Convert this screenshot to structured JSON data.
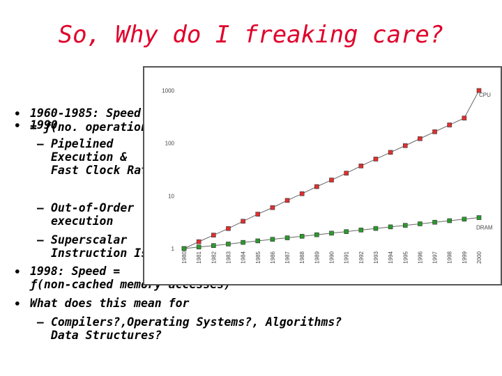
{
  "slide": {
    "title": "So, Why do I freaking care?",
    "bullets": [
      {
        "level": 1,
        "marker": "•",
        "lines": [
          "1960-1985: Speed",
          "= ƒ(no. operations)"
        ]
      },
      {
        "level": 1,
        "marker": "•",
        "lines": [
          "1990"
        ]
      },
      {
        "level": 2,
        "marker": "–",
        "lines": [
          "Pipelined",
          "Execution &",
          "Fast Clock Rate"
        ]
      },
      {
        "level": 2,
        "marker": "–",
        "lines": [
          "Out-of-Order",
          "execution"
        ]
      },
      {
        "level": 2,
        "marker": "–",
        "lines": [
          "Superscalar",
          "Instruction Issue"
        ]
      },
      {
        "level": 1,
        "marker": "•",
        "lines": [
          "1998: Speed =",
          "ƒ(non-cached memory accesses)"
        ]
      },
      {
        "level": 1,
        "marker": "•",
        "lines": [
          "What does this mean for"
        ]
      },
      {
        "level": 2,
        "marker": "–",
        "lines": [
          "Compilers?,Operating Systems?, Algorithms?",
          "Data Structures?"
        ]
      }
    ]
  },
  "chart_data": {
    "type": "line",
    "title": "",
    "xlabel": "",
    "ylabel": "",
    "yscale": "log",
    "ylim": [
      1,
      1000
    ],
    "y_ticks": [
      "1",
      "10",
      "100",
      "1000"
    ],
    "x": [
      "1980",
      "1981",
      "1982",
      "1983",
      "1984",
      "1985",
      "1986",
      "1987",
      "1988",
      "1989",
      "1990",
      "1991",
      "1992",
      "1993",
      "1994",
      "1995",
      "1996",
      "1997",
      "1998",
      "1999",
      "2000"
    ],
    "series": [
      {
        "name": "CPU",
        "color": "#e03030",
        "marker": "square",
        "values": [
          1,
          1.35,
          1.8,
          2.4,
          3.3,
          4.5,
          6.0,
          8.2,
          11,
          15,
          20,
          27,
          37,
          50,
          67,
          90,
          122,
          165,
          222,
          300,
          1000
        ]
      },
      {
        "name": "DRAM",
        "color": "#2a9a2a",
        "marker": "square",
        "values": [
          1,
          1.07,
          1.14,
          1.22,
          1.31,
          1.4,
          1.5,
          1.6,
          1.71,
          1.83,
          1.96,
          2.1,
          2.25,
          2.41,
          2.58,
          2.76,
          2.95,
          3.16,
          3.38,
          3.62,
          3.87
        ]
      }
    ],
    "grid": false,
    "legend": "series labels at right end of each line"
  }
}
